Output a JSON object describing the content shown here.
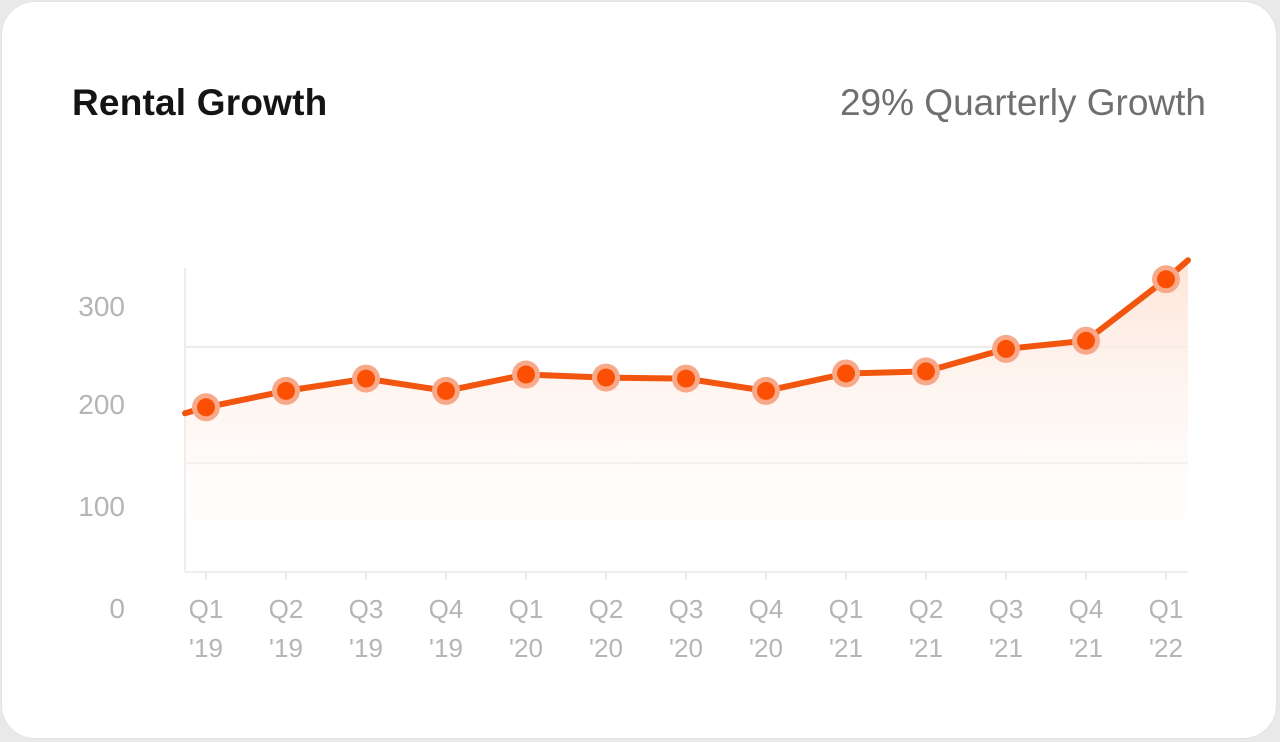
{
  "card": {
    "title": "Rental Growth",
    "subtitle": "29% Quarterly Growth"
  },
  "colors": {
    "line": "#f2550e",
    "point_fill": "#fb5004",
    "point_halo": "#f7a98a",
    "area_top": "#fde2d4",
    "grid": "#ececec"
  },
  "chart_data": {
    "type": "line",
    "title": "Rental Growth",
    "annotation": "29% Quarterly Growth",
    "categories": [
      "Q1 '19",
      "Q2 '19",
      "Q3 '19",
      "Q4 '19",
      "Q1 '20",
      "Q2 '20",
      "Q3 '20",
      "Q4 '20",
      "Q1 '21",
      "Q2 '21",
      "Q3 '21",
      "Q4 '21",
      "Q1 '22"
    ],
    "tick_labels": [
      [
        "Q1",
        "'19"
      ],
      [
        "Q2",
        "'19"
      ],
      [
        "Q3",
        "'19"
      ],
      [
        "Q4",
        "'19"
      ],
      [
        "Q1",
        "'20"
      ],
      [
        "Q2",
        "'20"
      ],
      [
        "Q3",
        "'20"
      ],
      [
        "Q4",
        "'20"
      ],
      [
        "Q1",
        "'21"
      ],
      [
        "Q2",
        "'21"
      ],
      [
        "Q3",
        "'21"
      ],
      [
        "Q4",
        "'21"
      ],
      [
        "Q1",
        "'22"
      ]
    ],
    "series": [
      {
        "values": [
          197,
          213,
          225,
          213,
          229,
          226,
          225,
          213,
          230,
          232,
          254,
          262,
          322
        ]
      }
    ],
    "yticks": [
      0,
      100,
      200,
      300
    ],
    "ylim": [
      0,
      350
    ],
    "grid": true,
    "area_fill": true
  }
}
